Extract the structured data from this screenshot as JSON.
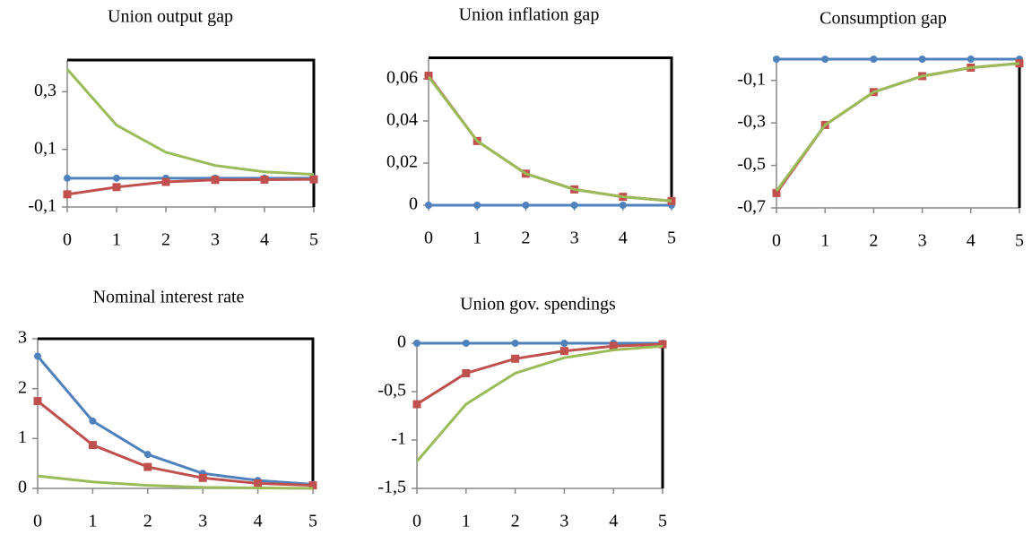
{
  "chart_data": [
    {
      "type": "line",
      "title": "Union output gap",
      "x": [
        0,
        1,
        2,
        3,
        4,
        5
      ],
      "xlim": [
        0,
        5
      ],
      "xticks": [
        0,
        1,
        2,
        3,
        4,
        5
      ],
      "ylim": [
        -0.1,
        0.41
      ],
      "yticks": [
        {
          "value": -0.1,
          "label": "-0,1"
        },
        {
          "value": 0.1,
          "label": "0,1"
        },
        {
          "value": 0.3,
          "label": "0,3"
        }
      ],
      "series": [
        {
          "color": "#4f81bd",
          "marker": "circle",
          "values": [
            0.0,
            0.0,
            0.0,
            0.0,
            0.0,
            0.0
          ]
        },
        {
          "color": "#c0504d",
          "marker": "square",
          "values": [
            -0.056,
            -0.031,
            -0.013,
            -0.006,
            -0.005,
            -0.004
          ]
        },
        {
          "color": "#9bbb59",
          "marker": "none",
          "values": [
            0.378,
            0.184,
            0.09,
            0.044,
            0.022,
            0.013
          ]
        }
      ]
    },
    {
      "type": "line",
      "title": "Union inflation gap",
      "x": [
        0,
        1,
        2,
        3,
        4,
        5
      ],
      "xlim": [
        0,
        5
      ],
      "xticks": [
        0,
        1,
        2,
        3,
        4,
        5
      ],
      "ylim": [
        0,
        0.07
      ],
      "yticks": [
        0,
        {
          "value": 0.02,
          "label": "0,02"
        },
        {
          "value": 0.04,
          "label": "0,04"
        },
        {
          "value": 0.06,
          "label": "0,06"
        }
      ],
      "series": [
        {
          "color": "#4f81bd",
          "marker": "circle",
          "values": [
            0,
            0,
            0,
            0,
            0,
            0
          ]
        },
        {
          "color": "#c0504d",
          "marker": "square",
          "values": [
            0.0615,
            0.0305,
            0.015,
            0.0075,
            0.004,
            0.002
          ]
        },
        {
          "color": "#9bbb59",
          "marker": "none",
          "values": [
            0.061,
            0.0305,
            0.015,
            0.0075,
            0.004,
            0.002
          ]
        }
      ]
    },
    {
      "type": "line",
      "title": "Consumption  gap",
      "x": [
        0,
        1,
        2,
        3,
        4,
        5
      ],
      "xlim": [
        0,
        5
      ],
      "xticks": [
        0,
        1,
        2,
        3,
        4,
        5
      ],
      "ylim": [
        -0.7,
        0
      ],
      "yticks": [
        {
          "value": -0.7,
          "label": "-0,7"
        },
        {
          "value": -0.5,
          "label": "-0,5"
        },
        {
          "value": -0.3,
          "label": "-0,3"
        },
        {
          "value": -0.1,
          "label": "-0,1"
        }
      ],
      "series": [
        {
          "color": "#4f81bd",
          "marker": "circle",
          "values": [
            0,
            0,
            0,
            0,
            0,
            0
          ]
        },
        {
          "color": "#c0504d",
          "marker": "square",
          "values": [
            -0.63,
            -0.31,
            -0.155,
            -0.08,
            -0.04,
            -0.02
          ]
        },
        {
          "color": "#9bbb59",
          "marker": "none",
          "values": [
            -0.62,
            -0.31,
            -0.155,
            -0.08,
            -0.04,
            -0.02
          ]
        }
      ]
    },
    {
      "type": "line",
      "title": "Nominal interest rate",
      "x": [
        0,
        1,
        2,
        3,
        4,
        5
      ],
      "xlim": [
        0,
        5
      ],
      "xticks": [
        0,
        1,
        2,
        3,
        4,
        5
      ],
      "ylim": [
        0,
        3
      ],
      "yticks": [
        0,
        1,
        2,
        3
      ],
      "series": [
        {
          "color": "#4f81bd",
          "marker": "circle",
          "values": [
            2.65,
            1.35,
            0.68,
            0.3,
            0.16,
            0.08
          ]
        },
        {
          "color": "#c0504d",
          "marker": "square",
          "values": [
            1.75,
            0.87,
            0.43,
            0.21,
            0.1,
            0.06
          ]
        },
        {
          "color": "#9bbb59",
          "marker": "none",
          "values": [
            0.25,
            0.13,
            0.06,
            0.02,
            0.01,
            0.0
          ]
        }
      ]
    },
    {
      "type": "line",
      "title": "Union gov. spendings",
      "x": [
        0,
        1,
        2,
        3,
        4,
        5
      ],
      "xlim": [
        0,
        5
      ],
      "xticks": [
        0,
        1,
        2,
        3,
        4,
        5
      ],
      "ylim": [
        -1.5,
        0
      ],
      "yticks": [
        {
          "value": -1.5,
          "label": "-1,5"
        },
        -1,
        {
          "value": -0.5,
          "label": "-0,5"
        },
        0
      ],
      "series": [
        {
          "color": "#4f81bd",
          "marker": "circle",
          "values": [
            0,
            0,
            0,
            0,
            0,
            0
          ]
        },
        {
          "color": "#c0504d",
          "marker": "square",
          "values": [
            -0.63,
            -0.31,
            -0.16,
            -0.08,
            -0.03,
            -0.01
          ]
        },
        {
          "color": "#9bbb59",
          "marker": "none",
          "values": [
            -1.22,
            -0.63,
            -0.31,
            -0.15,
            -0.07,
            -0.03
          ]
        }
      ]
    }
  ]
}
